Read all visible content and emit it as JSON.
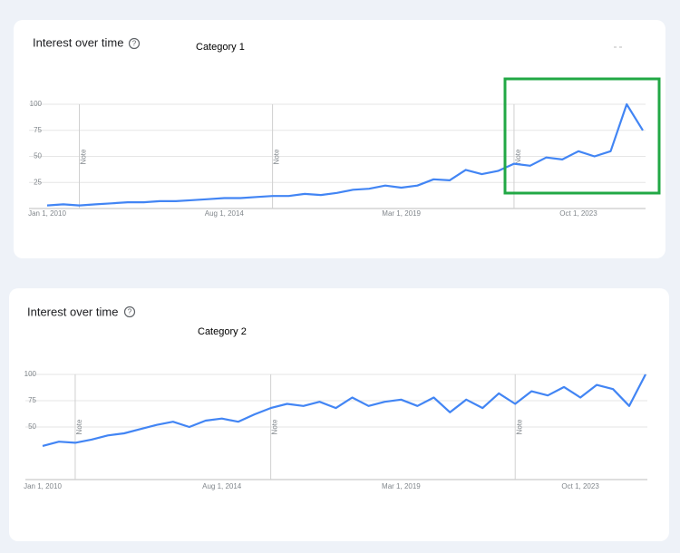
{
  "chart_data": [
    {
      "type": "line",
      "title": "Interest over time",
      "subtitle": "Category 1",
      "categories": [
        "Jan 1, 2010",
        null,
        null,
        null,
        null,
        null,
        null,
        null,
        null,
        null,
        null,
        "Aug 1, 2014",
        null,
        null,
        null,
        null,
        null,
        null,
        null,
        null,
        null,
        null,
        "Mar 1, 2019",
        null,
        null,
        null,
        null,
        null,
        null,
        null,
        null,
        null,
        null,
        "Oct 1, 2023",
        null,
        null,
        null,
        null
      ],
      "values": [
        3,
        4,
        3,
        4,
        5,
        6,
        6,
        7,
        7,
        8,
        9,
        10,
        10,
        11,
        12,
        12,
        14,
        13,
        15,
        18,
        19,
        22,
        20,
        22,
        28,
        27,
        37,
        33,
        36,
        43,
        41,
        49,
        47,
        55,
        50,
        55,
        100,
        75
      ],
      "color": "#4285f4",
      "ylim": [
        0,
        100
      ],
      "yticks": [
        25,
        50,
        75,
        100
      ],
      "grid": true,
      "notes": [
        {
          "at": 2,
          "label": "Note"
        },
        {
          "at": 14,
          "label": "Note"
        },
        {
          "at": 29,
          "label": "Note"
        }
      ]
    },
    {
      "type": "line",
      "title": "Interest over time",
      "subtitle": "Category 2",
      "categories": [
        "Jan 1, 2010",
        null,
        null,
        null,
        null,
        null,
        null,
        null,
        null,
        null,
        null,
        "Aug 1, 2014",
        null,
        null,
        null,
        null,
        null,
        null,
        null,
        null,
        null,
        null,
        "Mar 1, 2019",
        null,
        null,
        null,
        null,
        null,
        null,
        null,
        null,
        null,
        null,
        "Oct 1, 2023",
        null,
        null,
        null,
        null
      ],
      "values": [
        32,
        36,
        35,
        38,
        42,
        44,
        48,
        52,
        55,
        50,
        56,
        58,
        55,
        62,
        68,
        72,
        70,
        74,
        68,
        78,
        70,
        74,
        76,
        70,
        78,
        64,
        76,
        68,
        82,
        72,
        84,
        80,
        88,
        78,
        90,
        86,
        70,
        100
      ],
      "color": "#4285f4",
      "ylim": [
        0,
        100
      ],
      "yticks": [
        50,
        75,
        100
      ],
      "grid": true,
      "notes": [
        {
          "at": 2,
          "label": "Note"
        },
        {
          "at": 14,
          "label": "Note"
        },
        {
          "at": 29,
          "label": "Note"
        }
      ]
    }
  ]
}
